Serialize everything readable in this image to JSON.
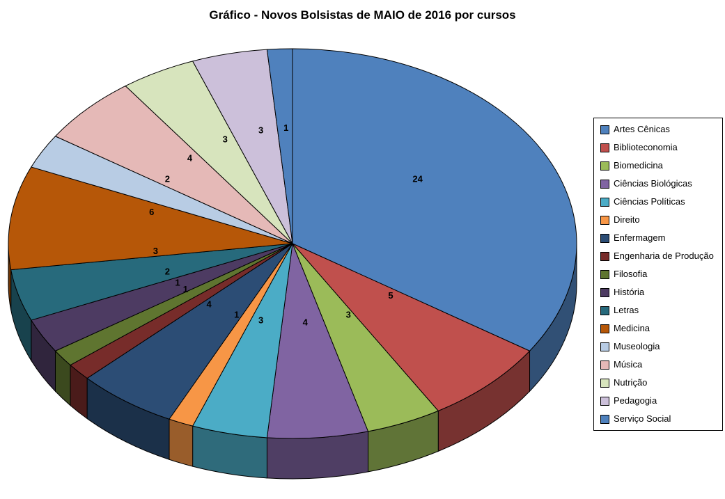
{
  "title": "Gráfico - Novos Bolsistas de MAIO de 2016 por cursos",
  "chart_data": {
    "type": "pie",
    "style": "3d",
    "title": "Gráfico - Novos Bolsistas de MAIO de 2016 por cursos",
    "total": 70,
    "start_angle_deg": -90,
    "direction": "clockwise",
    "legend_position": "right",
    "data_labels": "value",
    "categories": [
      "Artes Cênicas",
      "Biblioteconomia",
      "Biomedicina",
      "Ciências Biológicas",
      "Ciências Políticas",
      "Direito",
      "Enfermagem",
      "Engenharia de Produção",
      "Filosofia",
      "História",
      "Letras",
      "Medicina",
      "Museologia",
      "Música",
      "Nutrição",
      "Pedagogia",
      "Serviço Social"
    ],
    "values": [
      24,
      5,
      3,
      4,
      3,
      1,
      4,
      1,
      1,
      2,
      3,
      6,
      2,
      4,
      3,
      3,
      1
    ],
    "colors": [
      "#4F81BD",
      "#C0504D",
      "#9BBB59",
      "#8064A2",
      "#4BACC6",
      "#F79646",
      "#2C4D75",
      "#772C2A",
      "#5F7530",
      "#4D3B62",
      "#276A7C",
      "#B65708",
      "#B8CCE4",
      "#E5B9B7",
      "#D7E4BD",
      "#CCC0DA",
      "#4F81BD"
    ],
    "outline_color": "#000000",
    "background_color": "#FFFFFF"
  }
}
